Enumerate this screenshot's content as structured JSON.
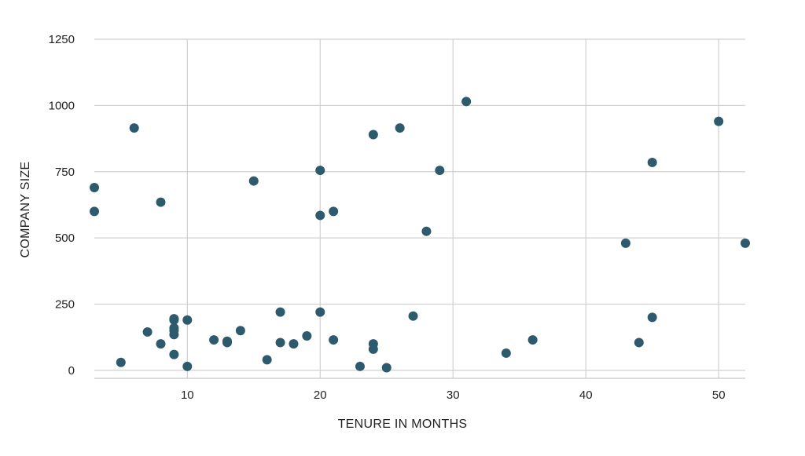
{
  "chart_data": {
    "type": "scatter",
    "title": "",
    "xlabel": "TENURE IN MONTHS",
    "ylabel": "COMPANY SIZE",
    "xlim": [
      3,
      52
    ],
    "ylim": [
      -30,
      1250
    ],
    "x_ticks": [
      10,
      20,
      30,
      40,
      50
    ],
    "y_ticks": [
      0,
      250,
      500,
      750,
      1000,
      1250
    ],
    "grid": true,
    "legend": "none",
    "point_color": "#2e5a6e",
    "grid_color": "#d0d0d0",
    "series": [
      {
        "points": [
          {
            "x": 3,
            "y": 690
          },
          {
            "x": 3,
            "y": 600
          },
          {
            "x": 5,
            "y": 30
          },
          {
            "x": 6,
            "y": 915
          },
          {
            "x": 7,
            "y": 145
          },
          {
            "x": 8,
            "y": 635
          },
          {
            "x": 8,
            "y": 100
          },
          {
            "x": 9,
            "y": 195
          },
          {
            "x": 9,
            "y": 190
          },
          {
            "x": 9,
            "y": 160
          },
          {
            "x": 9,
            "y": 150
          },
          {
            "x": 9,
            "y": 135
          },
          {
            "x": 9,
            "y": 60
          },
          {
            "x": 10,
            "y": 190
          },
          {
            "x": 10,
            "y": 15
          },
          {
            "x": 12,
            "y": 115
          },
          {
            "x": 13,
            "y": 110
          },
          {
            "x": 13,
            "y": 105
          },
          {
            "x": 14,
            "y": 150
          },
          {
            "x": 15,
            "y": 715
          },
          {
            "x": 16,
            "y": 40
          },
          {
            "x": 17,
            "y": 220
          },
          {
            "x": 17,
            "y": 105
          },
          {
            "x": 18,
            "y": 100
          },
          {
            "x": 19,
            "y": 130
          },
          {
            "x": 20,
            "y": 755
          },
          {
            "x": 20,
            "y": 585
          },
          {
            "x": 20,
            "y": 220
          },
          {
            "x": 21,
            "y": 600
          },
          {
            "x": 21,
            "y": 115
          },
          {
            "x": 23,
            "y": 15
          },
          {
            "x": 24,
            "y": 890
          },
          {
            "x": 24,
            "y": 100
          },
          {
            "x": 24,
            "y": 80
          },
          {
            "x": 25,
            "y": 10
          },
          {
            "x": 26,
            "y": 915
          },
          {
            "x": 27,
            "y": 205
          },
          {
            "x": 28,
            "y": 525
          },
          {
            "x": 29,
            "y": 755
          },
          {
            "x": 31,
            "y": 1015
          },
          {
            "x": 34,
            "y": 65
          },
          {
            "x": 36,
            "y": 115
          },
          {
            "x": 43,
            "y": 480
          },
          {
            "x": 44,
            "y": 105
          },
          {
            "x": 45,
            "y": 785
          },
          {
            "x": 45,
            "y": 200
          },
          {
            "x": 50,
            "y": 940
          },
          {
            "x": 52,
            "y": 480
          }
        ]
      }
    ]
  }
}
